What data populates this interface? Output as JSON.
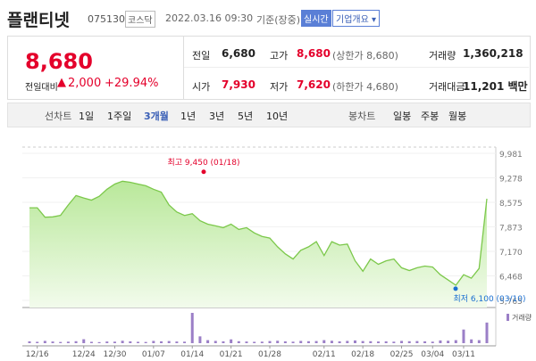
{
  "header": {
    "name": "플랜티넷",
    "code": "075130",
    "market": "코스닥",
    "datetime": "2022.03.16 09:30",
    "basis": "기준(장중)",
    "badges": [
      "실시간",
      "기업개요 ▾"
    ]
  },
  "price": {
    "current": "8,680",
    "change_label": "전일대비",
    "change": "2,000",
    "change_pct": "+29.94%"
  },
  "stats": [
    {
      "label": "전일",
      "value": "6,680"
    },
    {
      "label": "고가",
      "value": "8,680",
      "note": "(상한가 8,680)"
    },
    {
      "label": "거래량",
      "value": "1,360,218"
    },
    {
      "label": "시가",
      "value": "7,930"
    },
    {
      "label": "저가",
      "value": "7,620",
      "note": "(하한가 4,680)"
    },
    {
      "label": "거래대금",
      "value": "11,201 백만"
    }
  ],
  "tabs": {
    "line_label": "선차트",
    "line_items": [
      "1일",
      "1주일",
      "3개월",
      "1년",
      "3년",
      "5년",
      "10년"
    ],
    "active": "3개월",
    "candle_label": "봉차트",
    "candle_items": [
      "일봉",
      "주봉",
      "월봉"
    ]
  },
  "chart": {
    "type": "line",
    "color": "#7cc84b",
    "categories": [
      null,
      "12/16",
      null,
      null,
      null,
      null,
      null,
      "12/24",
      null,
      null,
      null,
      "12/30",
      null,
      null,
      null,
      null,
      "01/07",
      null,
      null,
      null,
      null,
      "01/14",
      null,
      null,
      null,
      null,
      "01/21",
      null,
      null,
      null,
      null,
      "01/28",
      null,
      null,
      null,
      null,
      null,
      null,
      "02/11",
      null,
      null,
      null,
      null,
      "02/18",
      null,
      null,
      null,
      null,
      "02/25",
      null,
      null,
      null,
      "03/04",
      null,
      null,
      null,
      "03/11",
      null,
      null,
      null
    ],
    "values": [
      8420,
      8420,
      8150,
      8160,
      8200,
      8500,
      8770,
      8700,
      8640,
      8750,
      8950,
      9100,
      9180,
      9150,
      9100,
      9050,
      8950,
      8870,
      8500,
      8300,
      8200,
      8250,
      8050,
      7950,
      7900,
      7850,
      7950,
      7800,
      7850,
      7700,
      7600,
      7550,
      7300,
      7100,
      6950,
      7200,
      7300,
      7450,
      7050,
      7450,
      7350,
      7380,
      6900,
      6600,
      6950,
      6800,
      6900,
      6950,
      6700,
      6620,
      6700,
      6750,
      6720,
      6500,
      6350,
      6200,
      6500,
      6400,
      6680,
      8680
    ],
    "ylim": [
      5765,
      9981
    ],
    "yticks": [
      {
        "value": 9981,
        "label": "9,981"
      },
      {
        "value": 9278,
        "label": "9,278"
      },
      {
        "value": 8575,
        "label": "8,575"
      },
      {
        "value": 7873,
        "label": "7,873"
      },
      {
        "value": 7170,
        "label": "7,170"
      },
      {
        "value": 6468,
        "label": "6,468"
      },
      {
        "value": 5765,
        "label": "5,765"
      }
    ],
    "annotations": [
      {
        "text": "최고 9,450 (01/18)",
        "value": 9450,
        "color": "#e4002b"
      },
      {
        "text": "최저 6,100 (03/10)",
        "value": 6100,
        "color": "#1a6fd1"
      }
    ],
    "volume": {
      "name": "거래량",
      "color": "#9b7fc7",
      "values": [
        120000,
        90000,
        150000,
        110000,
        80000,
        100000,
        130000,
        260000,
        90000,
        70000,
        110000,
        100000,
        160000,
        120000,
        90000,
        80000,
        150000,
        120000,
        140000,
        110000,
        100000,
        2000000,
        450000,
        200000,
        150000,
        120000,
        250000,
        130000,
        110000,
        90000,
        100000,
        140000,
        160000,
        120000,
        100000,
        150000,
        130000,
        140000,
        200000,
        160000,
        120000,
        150000,
        180000,
        140000,
        130000,
        110000,
        120000,
        100000,
        150000,
        130000,
        140000,
        120000,
        100000,
        180000,
        160000,
        200000,
        900000,
        250000,
        200000,
        1360218
      ]
    }
  }
}
